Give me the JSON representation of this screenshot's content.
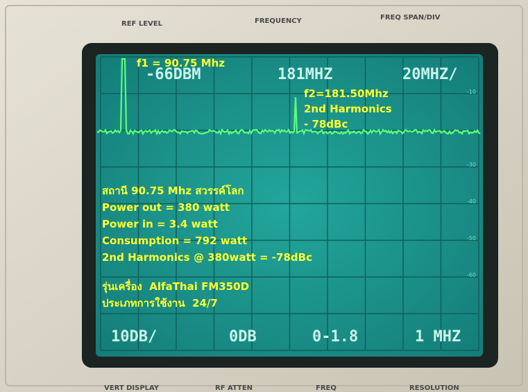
{
  "panel_top": [
    "REF LEVEL",
    "FREQUENCY",
    "FREQ SPAN/DIV"
  ],
  "panel_bottom": [
    "VERT DISPLAY",
    "RF ATTEN",
    "FREQ",
    "RESOLUTION"
  ],
  "readouts_top": [
    "-66DBM",
    "181MHZ",
    "20MHZ/"
  ],
  "readouts_bottom": [
    "10DB/",
    "0DB",
    "0-1.8",
    "1 MHZ"
  ],
  "scale": [
    "-10",
    "-30",
    "-40",
    "-50",
    "-60"
  ],
  "annotations": {
    "f1": "f1 = 90.75 Mhz",
    "f2": [
      "f2=181.50Mhz",
      "2nd Harmonics",
      "- 78dBc"
    ],
    "summary": [
      "สถานี 90.75 Mhz สวรรค์โลก",
      "Power out = 380 watt",
      "Power in = 3.4 watt",
      "Consumption = 792 watt",
      "2nd Harmonics @ 380watt = -78dBc"
    ],
    "model": [
      "รุ่นเครื่อง  AlfaThai FM350D",
      "ประเภทการใช้งาน  24/7"
    ]
  }
}
